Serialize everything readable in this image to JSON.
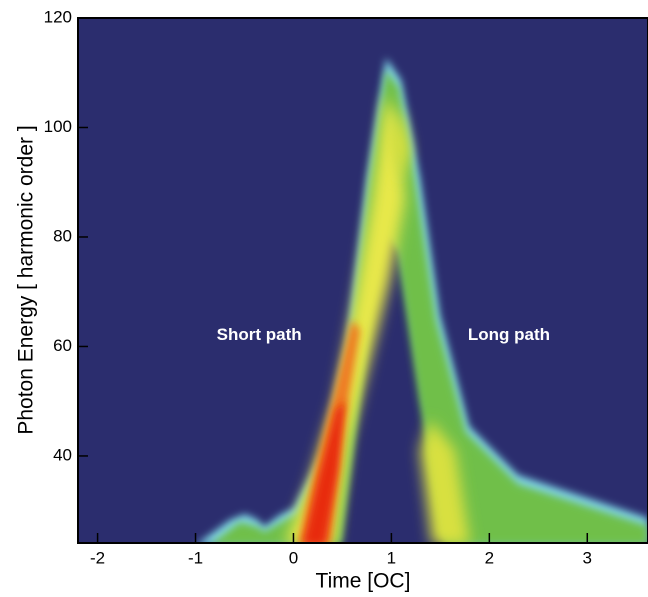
{
  "chart_data": {
    "type": "heatmap",
    "xlabel": "Time [OC]",
    "ylabel": "Photon Energy [ harmonic order ]",
    "xlim": [
      -2.2,
      3.62
    ],
    "ylim": [
      24.1,
      120
    ],
    "xticks": [
      -2,
      -1,
      0,
      1,
      2,
      3
    ],
    "yticks": [
      40,
      60,
      80,
      100,
      120
    ],
    "background": "#2b2d6e",
    "annotations": [
      {
        "text": "Short path",
        "x": -0.35,
        "y": 62
      },
      {
        "text": "Long path",
        "x": 2.2,
        "y": 62
      }
    ]
  }
}
